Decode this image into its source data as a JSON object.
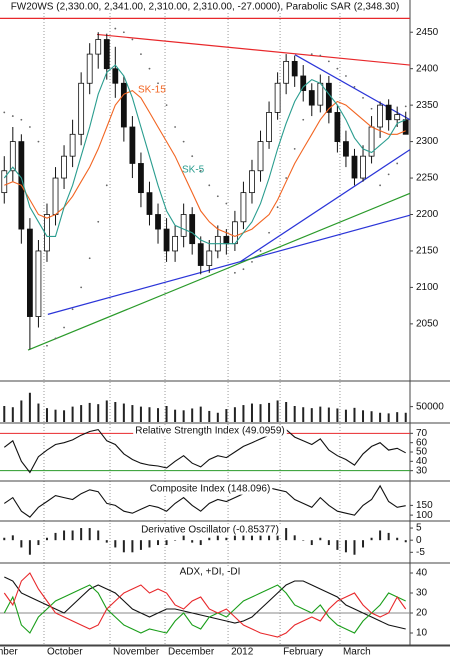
{
  "chart_data": [
    {
      "type": "candlestick",
      "title": "FW20WS (2,330.00, 2,341.00, 2,310.00, 2,310.00, -27.0000), Parabolic SAR (2,348.30)",
      "open": [
        2230,
        2260,
        2300,
        2180,
        2060,
        2150,
        2200,
        2250,
        2280,
        2310,
        2380,
        2420,
        2440,
        2400,
        2380,
        2320,
        2270,
        2230,
        2200,
        2180,
        2150,
        2170,
        2200,
        2160,
        2130,
        2150,
        2170,
        2160,
        2190,
        2230,
        2260,
        2300,
        2340,
        2380,
        2410,
        2390,
        2370,
        2350,
        2380,
        2340,
        2300,
        2280,
        2250,
        2280,
        2320,
        2350,
        2330,
        2330
      ],
      "high": [
        2280,
        2320,
        2310,
        2195,
        2165,
        2215,
        2265,
        2295,
        2330,
        2395,
        2435,
        2450,
        2448,
        2430,
        2390,
        2335,
        2285,
        2245,
        2215,
        2195,
        2185,
        2215,
        2210,
        2170,
        2165,
        2185,
        2180,
        2205,
        2245,
        2275,
        2315,
        2355,
        2395,
        2420,
        2418,
        2405,
        2380,
        2392,
        2390,
        2350,
        2315,
        2290,
        2295,
        2335,
        2355,
        2358,
        2348,
        2341
      ],
      "low": [
        2215,
        2245,
        2160,
        2015,
        2045,
        2135,
        2185,
        2235,
        2265,
        2295,
        2365,
        2400,
        2385,
        2360,
        2300,
        2250,
        2210,
        2185,
        2160,
        2135,
        2135,
        2155,
        2145,
        2118,
        2120,
        2140,
        2145,
        2150,
        2180,
        2215,
        2245,
        2290,
        2330,
        2365,
        2375,
        2355,
        2335,
        2340,
        2325,
        2285,
        2265,
        2240,
        2245,
        2270,
        2305,
        2315,
        2320,
        2310
      ],
      "close": [
        2260,
        2300,
        2180,
        2060,
        2150,
        2200,
        2250,
        2280,
        2310,
        2380,
        2420,
        2440,
        2400,
        2380,
        2320,
        2270,
        2230,
        2200,
        2180,
        2150,
        2170,
        2200,
        2160,
        2130,
        2150,
        2170,
        2160,
        2190,
        2230,
        2260,
        2300,
        2340,
        2380,
        2410,
        2390,
        2370,
        2350,
        2380,
        2340,
        2300,
        2280,
        2250,
        2280,
        2320,
        2350,
        2330,
        2337,
        2310
      ],
      "series": [
        {
          "name": "SK-15",
          "color": "#f26522",
          "values": [
            2240,
            2245,
            2240,
            2220,
            2200,
            2195,
            2200,
            2210,
            2225,
            2245,
            2265,
            2290,
            2320,
            2350,
            2365,
            2370,
            2360,
            2340,
            2320,
            2300,
            2280,
            2255,
            2230,
            2205,
            2190,
            2180,
            2175,
            2170,
            2175,
            2180,
            2190,
            2200,
            2220,
            2245,
            2270,
            2290,
            2310,
            2330,
            2345,
            2355,
            2350,
            2340,
            2330,
            2320,
            2315,
            2310,
            2310,
            2315
          ]
        },
        {
          "name": "SK-5",
          "color": "#2a9d8f",
          "values": [
            2250,
            2265,
            2250,
            2210,
            2190,
            2170,
            2170,
            2210,
            2240,
            2280,
            2320,
            2365,
            2395,
            2405,
            2390,
            2360,
            2320,
            2280,
            2240,
            2205,
            2185,
            2180,
            2175,
            2165,
            2160,
            2160,
            2160,
            2160,
            2175,
            2190,
            2215,
            2250,
            2290,
            2325,
            2355,
            2375,
            2385,
            2380,
            2365,
            2350,
            2330,
            2305,
            2290,
            2285,
            2295,
            2305,
            2325,
            2330
          ]
        }
      ],
      "sar": {
        "color": "#666666",
        "values": [
          2340,
          2335,
          2330,
          2320,
          2300,
          2020,
          2030,
          2045,
          2070,
          2100,
          2140,
          2190,
          2240,
          2455,
          2450,
          2440,
          2420,
          2400,
          2380,
          2350,
          2320,
          2300,
          2280,
          2260,
          2240,
          2225,
          2215,
          2120,
          2125,
          2135,
          2150,
          2175,
          2210,
          2250,
          2290,
          2330,
          2420,
          2418,
          2410,
          2400,
          2390,
          2375,
          2360,
          2345,
          2240,
          2255,
          2270,
          2348.3
        ]
      },
      "trendlines": [
        {
          "color": "#e8282b",
          "x": [
            -0.5,
            47.5
          ],
          "y": [
            2469,
            2469
          ]
        },
        {
          "color": "#e8282b",
          "x": [
            10.86,
            47.5
          ],
          "y": [
            2447,
            2405
          ]
        },
        {
          "color": "#2b35d8",
          "x": [
            34.05,
            47.5
          ],
          "y": [
            2419,
            2330
          ]
        },
        {
          "color": "#2b35d8",
          "x": [
            27.6,
            47.5
          ],
          "y": [
            2135,
            2289
          ]
        },
        {
          "color": "#2b35d8",
          "x": [
            5.1,
            47.5
          ],
          "y": [
            2063,
            2199
          ]
        },
        {
          "color": "#2a9a2a",
          "x": [
            2.78,
            47.5
          ],
          "y": [
            2014,
            2229
          ]
        }
      ],
      "xlim": [
        -0.5,
        47.5
      ],
      "xticks": [
        {
          "value": -4.5,
          "label": "September"
        },
        {
          "value": 4.65,
          "label": "October"
        },
        {
          "value": 12.38,
          "label": "November"
        },
        {
          "value": 18.82,
          "label": "December"
        },
        {
          "value": 26.2,
          "label": "2012"
        },
        {
          "value": 32.29,
          "label": "February"
        },
        {
          "value": 39.3,
          "label": "March"
        }
      ],
      "ylim": [
        1973,
        2475
      ],
      "yticks": [
        2050,
        2100,
        2150,
        2200,
        2250,
        2300,
        2350,
        2400,
        2450
      ]
    },
    {
      "type": "bar",
      "color": "#222222",
      "values": [
        52000,
        48000,
        70000,
        95000,
        60000,
        45000,
        40000,
        38000,
        50000,
        55000,
        62000,
        58000,
        70000,
        65000,
        60000,
        55000,
        50000,
        48000,
        45000,
        52000,
        40000,
        38000,
        44000,
        50000,
        36000,
        30000,
        42000,
        48000,
        55000,
        60000,
        58000,
        62000,
        70000,
        65000,
        52000,
        48000,
        45000,
        50000,
        47000,
        44000,
        40000,
        46000,
        38000,
        35000,
        30000,
        28000,
        32000,
        30000
      ],
      "ylim": [
        0,
        130000
      ],
      "yticks": [
        50000
      ]
    },
    {
      "type": "line",
      "title": "Relative Strength Index (49.0959)",
      "series": [
        {
          "color": "#111111",
          "values": [
            55,
            62,
            40,
            28,
            45,
            52,
            58,
            60,
            63,
            68,
            72,
            74,
            62,
            58,
            48,
            42,
            38,
            36,
            35,
            33,
            40,
            46,
            38,
            34,
            42,
            46,
            44,
            50,
            56,
            60,
            64,
            68,
            72,
            74,
            66,
            62,
            58,
            64,
            52,
            46,
            42,
            36,
            48,
            56,
            60,
            52,
            54,
            49.0959
          ]
        }
      ],
      "levels": [
        {
          "value": 70,
          "color": "#e8282b"
        },
        {
          "value": 30,
          "color": "#2a9a2a"
        }
      ],
      "ylim": [
        20,
        80
      ],
      "yticks": [
        30,
        40,
        50,
        60,
        70
      ]
    },
    {
      "type": "line",
      "title": "Composite Index (148.096)",
      "series": [
        {
          "color": "#111111",
          "values": [
            160,
            190,
            120,
            90,
            140,
            170,
            200,
            190,
            180,
            210,
            230,
            220,
            160,
            150,
            120,
            110,
            130,
            150,
            140,
            120,
            160,
            190,
            150,
            120,
            160,
            180,
            170,
            190,
            210,
            220,
            230,
            240,
            230,
            220,
            180,
            160,
            140,
            190,
            150,
            120,
            110,
            100,
            150,
            180,
            250,
            170,
            140,
            148.096
          ]
        }
      ],
      "ylim": [
        75,
        275
      ],
      "yticks": [
        100,
        150
      ]
    },
    {
      "type": "bar",
      "title": "Derivative Oscillator (-0.85377)",
      "color": "#222222",
      "values": [
        1,
        2,
        -3,
        -6,
        -2,
        1,
        3,
        4,
        4,
        5,
        5,
        4,
        -1,
        -3,
        -5,
        -5,
        -4,
        -3,
        -2,
        -2,
        0,
        2,
        -1,
        -2,
        1,
        2,
        1,
        2,
        3,
        4,
        5,
        5,
        6,
        5,
        2,
        0,
        -2,
        1,
        -2,
        -4,
        -5,
        -6,
        -3,
        1,
        4,
        3,
        1,
        -0.85377
      ],
      "ylim": [
        -9,
        7.5
      ],
      "yticks": [
        -5,
        0,
        5
      ]
    },
    {
      "type": "line",
      "title": "ADX, +DI, -DI",
      "series": [
        {
          "color": "#111111",
          "values": [
            38,
            36,
            30,
            28,
            26,
            24,
            22,
            20,
            24,
            28,
            32,
            34,
            32,
            30,
            26,
            22,
            20,
            18,
            20,
            22,
            22,
            21,
            20,
            19,
            18,
            17,
            16,
            15,
            16,
            18,
            22,
            26,
            30,
            34,
            36,
            36,
            34,
            32,
            30,
            28,
            24,
            22,
            20,
            18,
            16,
            14,
            13,
            12
          ]
        },
        {
          "color": "#1a9e1a",
          "values": [
            20,
            28,
            14,
            10,
            18,
            22,
            26,
            28,
            30,
            32,
            34,
            30,
            22,
            18,
            14,
            12,
            10,
            12,
            11,
            10,
            16,
            20,
            14,
            12,
            18,
            20,
            18,
            22,
            26,
            28,
            30,
            32,
            34,
            30,
            24,
            22,
            20,
            24,
            18,
            14,
            12,
            10,
            16,
            20,
            24,
            30,
            28,
            26
          ]
        },
        {
          "color": "#e8282b",
          "values": [
            30,
            24,
            36,
            40,
            32,
            26,
            20,
            18,
            16,
            14,
            12,
            14,
            22,
            26,
            30,
            32,
            34,
            30,
            32,
            30,
            24,
            22,
            26,
            28,
            22,
            20,
            22,
            18,
            14,
            12,
            10,
            9,
            8,
            10,
            14,
            16,
            18,
            16,
            22,
            26,
            28,
            30,
            24,
            20,
            18,
            20,
            28,
            22
          ]
        }
      ],
      "levels": [
        {
          "value": 20,
          "color": "#888888"
        }
      ],
      "ylim": [
        4,
        44.5
      ],
      "yticks": [
        10,
        20,
        30,
        40
      ]
    }
  ]
}
